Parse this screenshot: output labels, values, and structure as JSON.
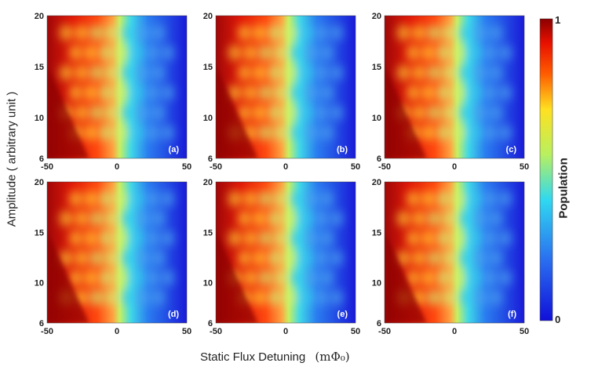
{
  "figure": {
    "ylabel": "Amplitude ( arbitrary unit )",
    "xlabel": "Static Flux Detuning",
    "xlabel_unit": "(mΦ₀)",
    "colorbar": {
      "label": "Population",
      "max_label": "1",
      "min_label": "0"
    },
    "colors": {
      "high": "#8b0000",
      "mid_high": "#ff2a00",
      "mid": "#c8f05a",
      "mid_low": "#28c8f0",
      "low": "#1a1ae6"
    }
  },
  "chart_data": [
    {
      "type": "heatmap",
      "panel": "(a)",
      "xlim": [
        -50,
        50
      ],
      "ylim": [
        6,
        20
      ],
      "xticks": [
        "-50",
        "0",
        "50"
      ],
      "yticks": [
        "6",
        "10",
        "15",
        "20"
      ],
      "colorbar_range": [
        0,
        1
      ]
    },
    {
      "type": "heatmap",
      "panel": "(b)",
      "xlim": [
        -50,
        50
      ],
      "ylim": [
        6,
        20
      ],
      "xticks": [
        "-50",
        "0",
        "50"
      ],
      "yticks": [
        "6",
        "10",
        "15",
        "20"
      ],
      "colorbar_range": [
        0,
        1
      ]
    },
    {
      "type": "heatmap",
      "panel": "(c)",
      "xlim": [
        -50,
        50
      ],
      "ylim": [
        6,
        20
      ],
      "xticks": [
        "-50",
        "0",
        "50"
      ],
      "yticks": [
        "6",
        "10",
        "15",
        "20"
      ],
      "colorbar_range": [
        0,
        1
      ]
    },
    {
      "type": "heatmap",
      "panel": "(d)",
      "xlim": [
        -50,
        50
      ],
      "ylim": [
        6,
        20
      ],
      "xticks": [
        "-50",
        "0",
        "50"
      ],
      "yticks": [
        "6",
        "10",
        "15",
        "20"
      ],
      "colorbar_range": [
        0,
        1
      ]
    },
    {
      "type": "heatmap",
      "panel": "(e)",
      "xlim": [
        -50,
        50
      ],
      "ylim": [
        6,
        20
      ],
      "xticks": [
        "-50",
        "0",
        "50"
      ],
      "yticks": [
        "6",
        "10",
        "15",
        "20"
      ],
      "colorbar_range": [
        0,
        1
      ]
    },
    {
      "type": "heatmap",
      "panel": "(f)",
      "xlim": [
        -50,
        50
      ],
      "ylim": [
        6,
        20
      ],
      "xticks": [
        "-50",
        "0",
        "50"
      ],
      "yticks": [
        "6",
        "10",
        "15",
        "20"
      ],
      "colorbar_range": [
        0,
        1
      ]
    }
  ]
}
